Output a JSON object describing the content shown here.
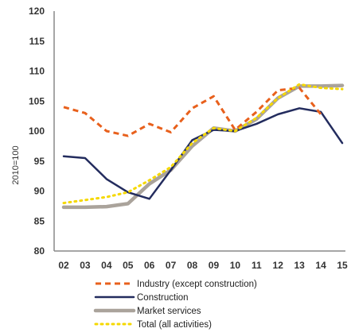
{
  "chart_data": {
    "type": "line",
    "title": "",
    "xlabel": "",
    "ylabel": "2010=100",
    "categories": [
      "02",
      "03",
      "04",
      "05",
      "06",
      "07",
      "08",
      "09",
      "10",
      "11",
      "12",
      "13",
      "14",
      "15"
    ],
    "ylim": [
      80,
      120
    ],
    "yticks": [
      80,
      85,
      90,
      95,
      100,
      105,
      110,
      115,
      120
    ],
    "grid": false,
    "legend_position": "bottom",
    "series": [
      {
        "name": "Industry (except construction)",
        "color": "#e8601c",
        "style": "dashed",
        "values": [
          104,
          103,
          100,
          99.2,
          101.2,
          99.8,
          103.8,
          105.8,
          100.2,
          103.2,
          106.8,
          107.2,
          102.8,
          null
        ]
      },
      {
        "name": "Construction",
        "color": "#232c5e",
        "style": "solid",
        "values": [
          95.8,
          95.5,
          92,
          89.8,
          88.7,
          93.5,
          98.5,
          100.2,
          100,
          101.2,
          102.8,
          103.8,
          103.2,
          98
        ]
      },
      {
        "name": "Market services",
        "color": "#aaa39b",
        "style": "solid-thick",
        "values": [
          87.3,
          87.3,
          87.4,
          87.9,
          91.2,
          93.5,
          97.5,
          100.5,
          100,
          102,
          105.5,
          107.5,
          107.5,
          107.6
        ]
      },
      {
        "name": "Total (all activities)",
        "color": "#f5d800",
        "style": "dotted",
        "values": [
          88,
          88.5,
          89,
          89.8,
          91.8,
          94,
          98,
          100.5,
          100,
          102.2,
          105.5,
          107.8,
          107.2,
          107
        ]
      }
    ]
  }
}
